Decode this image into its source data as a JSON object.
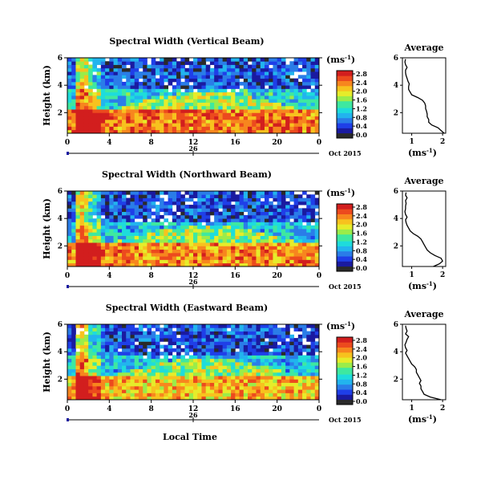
{
  "chart_data": {
    "type": "heatmap",
    "panels": [
      {
        "title": "Spectral Width (Vertical Beam)",
        "ylabel": "Height (km)",
        "x_ticks": [
          "0",
          "4",
          "8",
          "12",
          "16",
          "20",
          "0"
        ],
        "y_ticks": [
          "6",
          "4",
          "2"
        ],
        "xlim": [
          0,
          24
        ],
        "ylim": [
          0.5,
          6
        ],
        "date_day": "26",
        "date_label": "Oct 2015",
        "colorbar": {
          "title": "(ms",
          "title_sup": "-1",
          "title_end": ")",
          "ticks": [
            "2.8",
            "2.4",
            "2.0",
            "1.6",
            "1.2",
            "0.8",
            "0.4",
            "0.0"
          ]
        },
        "average": {
          "title": "Average",
          "xlabel": "(ms",
          "xlabel_sup": "-1",
          "xlabel_end": ")",
          "x_ticks": [
            "1",
            "2"
          ],
          "y_ticks": [
            "6",
            "4",
            "2"
          ],
          "xlim": [
            0.7,
            2.1
          ],
          "profile_height_km": [
            0.5,
            0.7,
            0.9,
            1.1,
            1.3,
            1.5,
            1.7,
            1.9,
            2.1,
            2.3,
            2.5,
            2.7,
            2.9,
            3.1,
            3.3,
            3.5,
            3.7,
            3.9,
            4.1,
            4.3,
            4.5,
            4.7,
            4.9,
            5.1,
            5.3,
            5.5,
            5.7,
            5.9
          ],
          "profile_width_ms": [
            2.05,
            1.95,
            1.85,
            1.65,
            1.55,
            1.55,
            1.5,
            1.5,
            1.48,
            1.45,
            1.45,
            1.42,
            1.35,
            1.2,
            1.0,
            0.95,
            0.9,
            0.9,
            0.92,
            0.88,
            0.85,
            0.82,
            0.8,
            0.8,
            0.85,
            0.8,
            0.78,
            0.8
          ]
        },
        "field_approx": {
          "low_level_width_ms": 1.9,
          "mid_level_width_ms": 1.2,
          "upper_level_width_ms": 0.6
        }
      },
      {
        "title": "Spectral Width (Northward Beam)",
        "ylabel": "Height (km)",
        "x_ticks": [
          "0",
          "4",
          "8",
          "12",
          "16",
          "20",
          "0"
        ],
        "y_ticks": [
          "6",
          "4",
          "2"
        ],
        "xlim": [
          0,
          24
        ],
        "ylim": [
          0.5,
          6
        ],
        "date_day": "26",
        "date_label": "Oct 2015",
        "colorbar": {
          "title": "(ms",
          "title_sup": "-1",
          "title_end": ")",
          "ticks": [
            "2.8",
            "2.4",
            "2.0",
            "1.6",
            "1.2",
            "0.8",
            "0.4",
            "0.0"
          ]
        },
        "average": {
          "title": "Average",
          "xlabel": "(ms",
          "xlabel_sup": "-1",
          "xlabel_end": ")",
          "x_ticks": [
            "1",
            "2"
          ],
          "y_ticks": [
            "6",
            "4",
            "2"
          ],
          "xlim": [
            0.7,
            2.1
          ],
          "profile_height_km": [
            0.5,
            0.7,
            0.9,
            1.1,
            1.3,
            1.5,
            1.7,
            1.9,
            2.1,
            2.3,
            2.5,
            2.7,
            2.9,
            3.1,
            3.3,
            3.5,
            3.7,
            3.9,
            4.1,
            4.3,
            4.5,
            4.7,
            4.9,
            5.1,
            5.3,
            5.5,
            5.7,
            5.9
          ],
          "profile_width_ms": [
            1.7,
            1.9,
            2.0,
            1.95,
            1.75,
            1.6,
            1.5,
            1.45,
            1.4,
            1.35,
            1.3,
            1.2,
            1.05,
            0.95,
            0.9,
            0.85,
            0.82,
            0.8,
            0.85,
            0.8,
            0.78,
            0.8,
            0.8,
            0.82,
            0.8,
            0.85,
            0.8,
            0.82
          ]
        },
        "field_approx": {
          "low_level_width_ms": 1.8,
          "mid_level_width_ms": 1.1,
          "upper_level_width_ms": 0.6
        }
      },
      {
        "title": "Spectral Width (Eastward Beam)",
        "ylabel": "Height (km)",
        "x_ticks": [
          "0",
          "4",
          "8",
          "12",
          "16",
          "20",
          "0"
        ],
        "y_ticks": [
          "6",
          "4",
          "2"
        ],
        "xlim": [
          0,
          24
        ],
        "ylim": [
          0.5,
          6
        ],
        "date_day": "26",
        "date_label": "Oct 2015",
        "colorbar": {
          "title": "(ms",
          "title_sup": "-1",
          "title_end": ")",
          "ticks": [
            "2.8",
            "2.4",
            "2.0",
            "1.6",
            "1.2",
            "0.8",
            "0.4",
            "0.0"
          ]
        },
        "average": {
          "title": "Average",
          "xlabel": "(ms",
          "xlabel_sup": "-1",
          "xlabel_end": ")",
          "x_ticks": [
            "1",
            "2"
          ],
          "y_ticks": [
            "6",
            "4",
            "2"
          ],
          "xlim": [
            0.7,
            2.1
          ],
          "profile_height_km": [
            0.5,
            0.7,
            0.9,
            1.1,
            1.3,
            1.5,
            1.7,
            1.9,
            2.1,
            2.3,
            2.5,
            2.7,
            2.9,
            3.1,
            3.3,
            3.5,
            3.7,
            3.9,
            4.1,
            4.3,
            4.5,
            4.7,
            4.9,
            5.1,
            5.3,
            5.5,
            5.7,
            5.9
          ],
          "profile_width_ms": [
            1.95,
            1.6,
            1.4,
            1.35,
            1.3,
            1.3,
            1.25,
            1.3,
            1.25,
            1.2,
            1.15,
            1.15,
            1.1,
            1.0,
            0.95,
            0.9,
            0.85,
            0.8,
            0.85,
            0.8,
            0.78,
            0.82,
            0.85,
            0.9,
            0.8,
            0.85,
            0.82,
            0.8
          ]
        },
        "field_approx": {
          "low_level_width_ms": 1.6,
          "mid_level_width_ms": 1.1,
          "upper_level_width_ms": 0.6
        }
      }
    ],
    "common_xlabel": "Local Time"
  }
}
